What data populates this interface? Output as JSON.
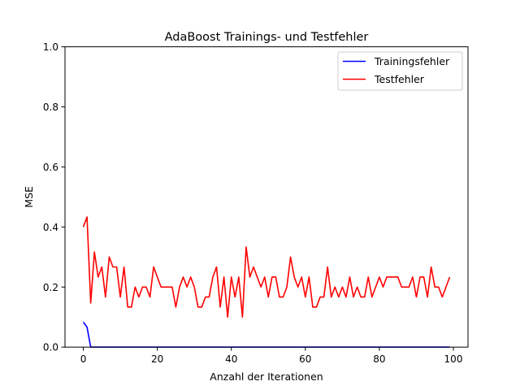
{
  "chart_data": {
    "type": "line",
    "title": "AdaBoost Trainings- und Testfehler",
    "xlabel": "Anzahl der Iterationen",
    "ylabel": "MSE",
    "xlim": [
      -4.95,
      103.95
    ],
    "ylim": [
      0,
      1.0
    ],
    "x_ticks": [
      0,
      20,
      40,
      60,
      80,
      100
    ],
    "y_ticks": [
      0.0,
      0.2,
      0.4,
      0.6,
      0.8,
      1.0
    ],
    "x_tick_labels": [
      "0",
      "20",
      "40",
      "60",
      "80",
      "100"
    ],
    "y_tick_labels": [
      "0.0",
      "0.2",
      "0.4",
      "0.6",
      "0.8",
      "1.0"
    ],
    "grid": false,
    "legend_position": "top-right",
    "series": [
      {
        "name": "Trainingsfehler",
        "color": "#0000ff",
        "values": [
          0.0833,
          0.0667,
          0.0,
          0.0,
          0.0,
          0.0,
          0.0,
          0.0,
          0.0,
          0.0,
          0.0,
          0.0,
          0.0,
          0.0,
          0.0,
          0.0,
          0.0,
          0.0,
          0.0,
          0.0,
          0.0,
          0.0,
          0.0,
          0.0,
          0.0,
          0.0,
          0.0,
          0.0,
          0.0,
          0.0,
          0.0,
          0.0,
          0.0,
          0.0,
          0.0,
          0.0,
          0.0,
          0.0,
          0.0,
          0.0,
          0.0,
          0.0,
          0.0,
          0.0,
          0.0,
          0.0,
          0.0,
          0.0,
          0.0,
          0.0,
          0.0,
          0.0,
          0.0,
          0.0,
          0.0,
          0.0,
          0.0,
          0.0,
          0.0,
          0.0,
          0.0,
          0.0,
          0.0,
          0.0,
          0.0,
          0.0,
          0.0,
          0.0,
          0.0,
          0.0,
          0.0,
          0.0,
          0.0,
          0.0,
          0.0,
          0.0,
          0.0,
          0.0,
          0.0,
          0.0,
          0.0,
          0.0,
          0.0,
          0.0,
          0.0,
          0.0,
          0.0,
          0.0,
          0.0,
          0.0,
          0.0,
          0.0,
          0.0,
          0.0,
          0.0,
          0.0,
          0.0,
          0.0,
          0.0,
          0.0
        ]
      },
      {
        "name": "Testfehler",
        "color": "#ff0000",
        "values": [
          0.4,
          0.4333,
          0.1467,
          0.3167,
          0.2333,
          0.2667,
          0.1667,
          0.3,
          0.2667,
          0.2667,
          0.1667,
          0.2667,
          0.1333,
          0.1333,
          0.2,
          0.1667,
          0.2,
          0.2,
          0.1667,
          0.2667,
          0.2333,
          0.2,
          0.2,
          0.2,
          0.2,
          0.1333,
          0.2,
          0.2333,
          0.2,
          0.2333,
          0.2,
          0.1333,
          0.1333,
          0.1667,
          0.1667,
          0.2333,
          0.2667,
          0.1333,
          0.2333,
          0.1,
          0.2333,
          0.1667,
          0.2333,
          0.1,
          0.3333,
          0.2333,
          0.2667,
          0.2333,
          0.2,
          0.2333,
          0.1667,
          0.2333,
          0.2333,
          0.1667,
          0.1667,
          0.2,
          0.3,
          0.2333,
          0.2,
          0.2333,
          0.1667,
          0.2333,
          0.1333,
          0.1333,
          0.1667,
          0.1667,
          0.2667,
          0.1667,
          0.2,
          0.1667,
          0.2,
          0.1667,
          0.2333,
          0.1667,
          0.2,
          0.1667,
          0.1667,
          0.2333,
          0.1667,
          0.2,
          0.2333,
          0.2,
          0.2333,
          0.2333,
          0.2333,
          0.2333,
          0.2,
          0.2,
          0.2,
          0.2333,
          0.1667,
          0.2333,
          0.2333,
          0.1667,
          0.2667,
          0.2,
          0.2,
          0.1667,
          0.2,
          0.2333
        ]
      }
    ]
  }
}
